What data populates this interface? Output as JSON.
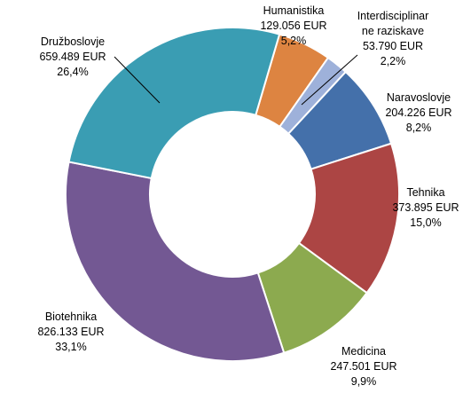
{
  "chart_data": {
    "type": "pie",
    "variant": "donut",
    "title": "",
    "legend": "none",
    "slices": [
      {
        "name": "Humanistika",
        "value_label": "129.056 EUR",
        "value": 129056,
        "percent_label": "5,2%",
        "percent": 5.2,
        "color": "#DD8441"
      },
      {
        "name": "Interdisciplinar ne raziskave",
        "name_lines": [
          "Interdisciplinar",
          "ne raziskave"
        ],
        "value_label": "53.790 EUR",
        "value": 53790,
        "percent_label": "2,2%",
        "percent": 2.2,
        "color": "#9EB1DA"
      },
      {
        "name": "Naravoslovje",
        "value_label": "204.226 EUR",
        "value": 204226,
        "percent_label": "8,2%",
        "percent": 8.2,
        "color": "#4470AA"
      },
      {
        "name": "Tehnika",
        "value_label": "373.895 EUR",
        "value": 373895,
        "percent_label": "15,0%",
        "percent": 15.0,
        "color": "#AC4544"
      },
      {
        "name": "Medicina",
        "value_label": "247.501 EUR",
        "value": 247501,
        "percent_label": "9,9%",
        "percent": 9.9,
        "color": "#8CAA4F"
      },
      {
        "name": "Biotehnika",
        "value_label": "826.133 EUR",
        "value": 826133,
        "percent_label": "33,1%",
        "percent": 33.1,
        "color": "#735893"
      },
      {
        "name": "Družboslovje",
        "value_label": "659.489 EUR",
        "value": 659489,
        "percent_label": "26,4%",
        "percent": 26.4,
        "color": "#3A9DB3"
      }
    ]
  }
}
